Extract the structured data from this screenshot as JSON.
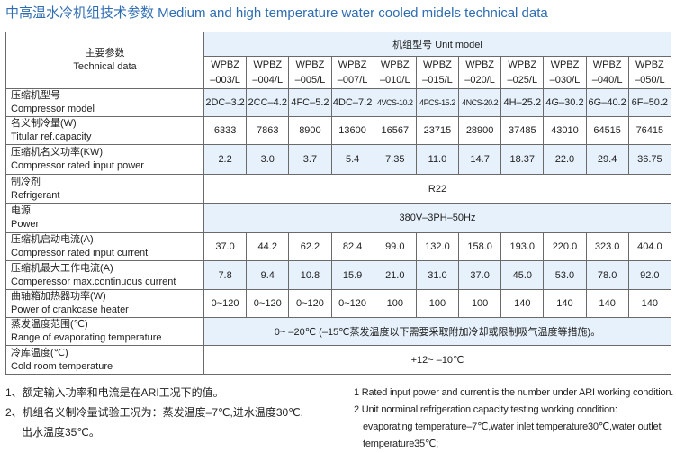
{
  "title": "中高温水冷机组技术参数 Medium and high temperature water cooled midels technical data",
  "header": {
    "param_cn": "主要参数",
    "param_en": "Technical data",
    "unit_model": "机组型号 Unit model",
    "models": [
      "WPBZ\n–003/L",
      "WPBZ\n–004/L",
      "WPBZ\n–005/L",
      "WPBZ\n–007/L",
      "WPBZ\n–010/L",
      "WPBZ\n–015/L",
      "WPBZ\n–020/L",
      "WPBZ\n–025/L",
      "WPBZ\n–030/L",
      "WPBZ\n–040/L",
      "WPBZ\n–050/L"
    ]
  },
  "rows": [
    {
      "cn": "压缩机型号",
      "en": "Compressor model",
      "shaded": true,
      "values": [
        "2DC–3.2",
        "2CC–4.2",
        "4FC–5.2",
        "4DC–7.2",
        "4VCS-10.2",
        "4PCS-15.2",
        "4NCS-20.2",
        "4H–25.2",
        "4G–30.2",
        "6G–40.2",
        "6F–50.2"
      ]
    },
    {
      "cn": "名义制冷量(W)",
      "en": "Titular ref.capacity",
      "shaded": false,
      "values": [
        "6333",
        "7863",
        "8900",
        "13600",
        "16567",
        "23715",
        "28900",
        "37485",
        "43010",
        "64515",
        "76415"
      ]
    },
    {
      "cn": "压缩机名义功率(KW)",
      "en": "Compressor rated input power",
      "shaded": true,
      "values": [
        "2.2",
        "3.0",
        "3.7",
        "5.4",
        "7.35",
        "11.0",
        "14.7",
        "18.37",
        "22.0",
        "29.4",
        "36.75"
      ]
    },
    {
      "cn": "制冷剂",
      "en": "Refrigerant",
      "shaded": false,
      "span": "R22"
    },
    {
      "cn": "电源",
      "en": "Power",
      "shaded": true,
      "span": "380V–3PH–50Hz"
    },
    {
      "cn": "压缩机启动电流(A)",
      "en": "Compressor rated input current",
      "shaded": false,
      "values": [
        "37.0",
        "44.2",
        "62.2",
        "82.4",
        "99.0",
        "132.0",
        "158.0",
        "193.0",
        "220.0",
        "323.0",
        "404.0"
      ]
    },
    {
      "cn": "压缩机最大工作电流(A)",
      "en": "Comperessor max.continuous current",
      "shaded": true,
      "values": [
        "7.8",
        "9.4",
        "10.8",
        "15.9",
        "21.0",
        "31.0",
        "37.0",
        "45.0",
        "53.0",
        "78.0",
        "92.0"
      ]
    },
    {
      "cn": "曲轴箱加热器功率(W)",
      "en": "Power of crankcase heater",
      "shaded": false,
      "values": [
        "0~120",
        "0~120",
        "0~120",
        "0~120",
        "100",
        "100",
        "100",
        "140",
        "140",
        "140",
        "140"
      ]
    },
    {
      "cn": "蒸发温度范围(℃)",
      "en": "Range of evaporating temperature",
      "shaded": true,
      "span": "0~ –20℃ (–15℃蒸发温度以下需要采取附加冷却或限制吸气温度等措施)。"
    },
    {
      "cn": "冷库温度(℃)",
      "en": "Cold room temperature",
      "shaded": false,
      "span": "+12~ –10℃"
    }
  ],
  "notes_cn": [
    "1、额定输入功率和电流是在ARI工况下的值。",
    "2、机组名义制冷量试验工况为：蒸发温度–7℃,进水温度30℃,",
    "出水温度35℃。"
  ],
  "notes_en": [
    "1  Rated input power and current is the number under ARI working condition.",
    "2  Unit norminal refrigeration capacity testing working condition:",
    "evaporating temperature–7℃,water inlet temperature30℃,water outlet",
    "temperature35℃;"
  ]
}
